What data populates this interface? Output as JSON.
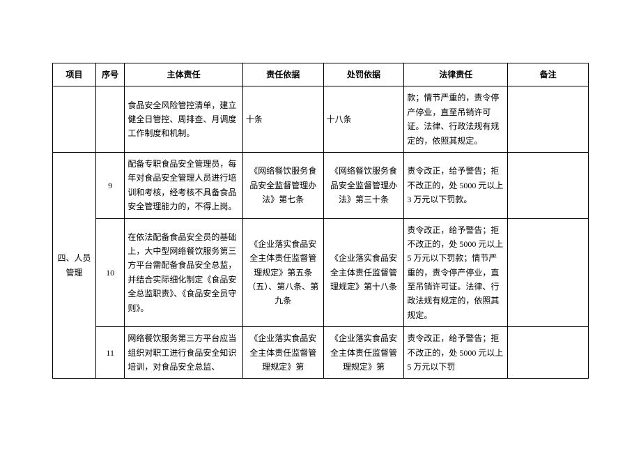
{
  "table": {
    "headers": {
      "project": "项目",
      "seq": "序号",
      "duty": "主体责任",
      "basis": "责任依据",
      "penalty": "处罚依据",
      "legal": "法律责任",
      "remark": "备注"
    },
    "rows": [
      {
        "project": "",
        "seq": "",
        "duty": "食品安全风险管控清单，建立健全日管控、周排查、月调度工作制度和机制。",
        "basis": "十条",
        "penalty": "十八条",
        "legal": "款；情节严重的，责令停产停业，直至吊销许可证。法律、行政法规有规定的，依照其规定。",
        "remark": ""
      },
      {
        "project": "四、人员管理",
        "seq": "9",
        "duty": "配备专职食品安全管理员，每年对食品安全管理人员进行培训和考核，经考核不具备食品安全管理能力的，不得上岗。",
        "basis": "《网络餐饮服务食品安全监督管理办法》第七条",
        "penalty": "《网络餐饮服务食品安全监督管理办法》第三十条",
        "legal": "责令改正，给予警告；拒不改正的，处 5000 元以上 3 万元以下罚款。",
        "remark": ""
      },
      {
        "seq": "10",
        "duty": "在依法配备食品安全员的基础上，大中型网络餐饮服务第三方平台需配备食品安全总监，并结合实际细化制定《食品安全总监职责》、《食品安全员守则》。",
        "basis": "《企业落实食品安全主体责任监督管理规定》第五条（五）、第八条、第九条",
        "penalty": "《企业落实食品安全主体责任监督管理规定》第十八条",
        "legal": "责令改正，给予警告；拒不改正的，处 5000 元以上 5 万元以下罚款；情节严重的，责令停产停业，直至吊销许可证。法律、行政法规有规定的，依照其规定。",
        "remark": ""
      },
      {
        "seq": "11",
        "duty": "网络餐饮服务第三方平台应当组织对职工进行食品安全知识培训，对食品安全总监、",
        "basis": "《企业落实食品安全主体责任监督管理规定》第",
        "penalty": "《企业落实食品安全主体责任监督管理规定》第",
        "legal": "责令改正，给予警告；拒不改正的，处 5000 元以上 5 万元以下罚",
        "remark": ""
      }
    ],
    "styling": {
      "border_color": "#000000",
      "background_color": "#ffffff",
      "font_size": 12,
      "font_family": "SimSun",
      "line_height": 1.7
    }
  }
}
